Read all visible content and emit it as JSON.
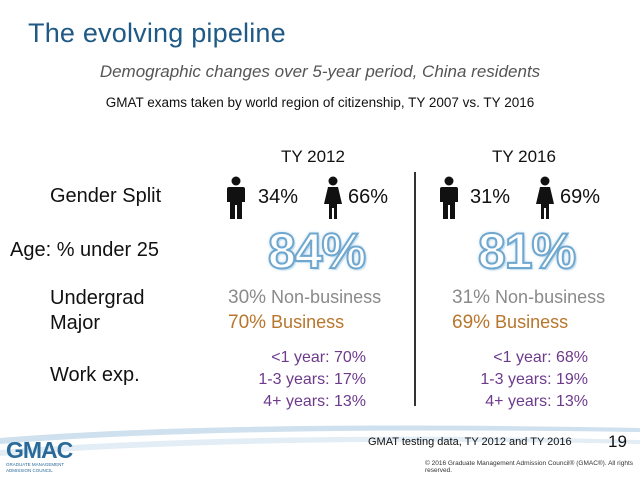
{
  "header": {
    "title": "The evolving pipeline",
    "subtitle": "Demographic changes over 5-year period, China residents",
    "subtitle2": "GMAT exams taken by world region of citizenship, TY 2007 vs. TY 2016"
  },
  "columns": {
    "left": "TY 2012",
    "right": "TY 2016"
  },
  "rows": {
    "gender": "Gender Split",
    "age": "Age: % under 25",
    "major_line1": "Undergrad",
    "major_line2": "Major",
    "work": "Work exp."
  },
  "ty2012": {
    "male": "34%",
    "female": "66%",
    "age": "84%",
    "nonbiz_pct": "30%",
    "nonbiz_label": "Non-business",
    "biz_pct": "70%",
    "biz_label": "Business",
    "work1": "<1 year: 70%",
    "work2": "1-3 years: 17%",
    "work3": "4+ years: 13%"
  },
  "ty2016": {
    "male": "31%",
    "female": "69%",
    "age": "81%",
    "nonbiz_pct": "31%",
    "nonbiz_label": "Non-business",
    "biz_pct": "69%",
    "biz_label": "Business",
    "work1": "<1 year: 68%",
    "work2": "1-3 years: 19%",
    "work3": "4+ years: 13%"
  },
  "footer": {
    "note": "GMAT testing data, TY 2012 and TY 2016",
    "page": "19",
    "copyright": "© 2016 Graduate Management Admission Council® (GMAC®). All rights reserved.",
    "logo_text": "GMAC",
    "logo_sub": "GRADUATE MANAGEMENT ADMISSION COUNCIL"
  },
  "colors": {
    "title": "#1f5a86",
    "big_outline": "#6fa7cf",
    "business": "#b8762c",
    "nonbusiness": "#8a8a8a",
    "work": "#6d3a8c"
  },
  "icons": [
    "male-person-icon",
    "female-person-icon"
  ]
}
